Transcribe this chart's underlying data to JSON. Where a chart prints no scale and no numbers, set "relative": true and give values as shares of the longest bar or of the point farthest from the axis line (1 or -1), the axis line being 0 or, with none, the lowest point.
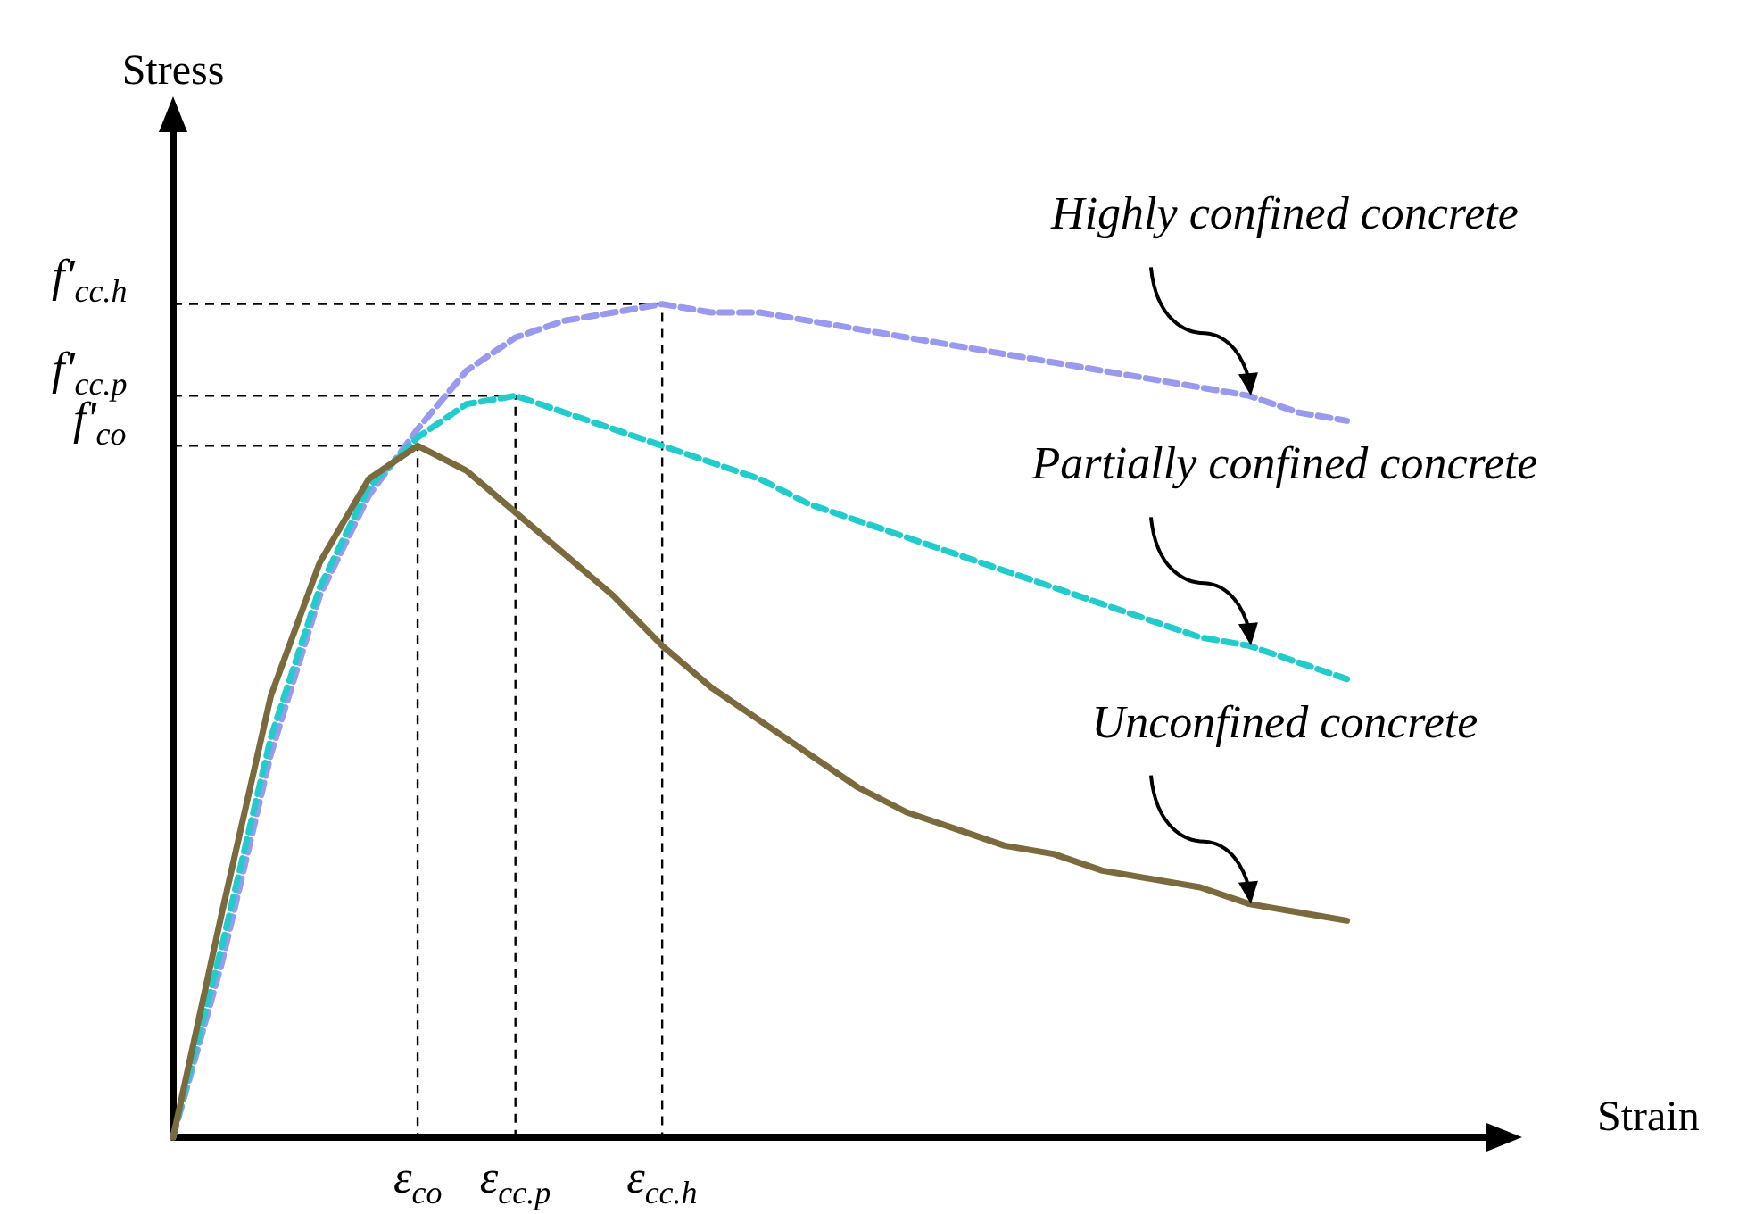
{
  "chart_data": {
    "type": "line",
    "relative": true,
    "xlabel": "Strain",
    "ylabel": "Stress",
    "grid": false,
    "marker": "none",
    "categories": [
      null,
      null,
      null,
      null,
      null,
      null,
      null,
      null,
      null,
      null,
      null,
      null,
      null,
      null,
      null,
      null,
      null,
      null,
      null,
      null,
      null,
      null,
      null,
      null,
      null,
      null,
      null,
      null
    ],
    "ref_lines": [
      {
        "axis": "y",
        "value": 0.83,
        "label": "f'$_{co}$",
        "color": "#000000",
        "line_style": "dashed"
      },
      {
        "axis": "y",
        "value": 0.89,
        "label": "f'$_{cc.p}$",
        "color": "#000000",
        "line_style": "dashed"
      },
      {
        "axis": "y",
        "value": 1,
        "label": "f'$_{cc.h}$",
        "color": "#000000",
        "line_style": "dashed"
      }
    ],
    "annotations": [
      "ε$_{co}$",
      "ε$_{cc.p}$",
      "ε$_{cc.h}$",
      "Highly confined concrete",
      "Partially confined concrete",
      "Unconfined concrete"
    ],
    "series": [
      {
        "color": "#9999ee",
        "line_style": "dashed",
        "values": [
          0,
          0.21,
          0.46,
          0.65,
          0.77,
          0.85,
          0.92,
          0.96,
          0.98,
          0.99,
          1,
          0.99,
          0.99,
          0.98,
          0.97,
          0.96,
          0.95,
          0.94,
          0.93,
          0.92,
          0.91,
          0.9,
          0.89,
          0.87,
          0.86,
          null,
          null,
          null
        ]
      },
      {
        "color": "#22cccc",
        "line_style": "dashed",
        "values": [
          0,
          0.23,
          0.48,
          0.66,
          0.78,
          0.84,
          0.88,
          0.89,
          0.87,
          0.85,
          0.83,
          0.81,
          0.79,
          0.76,
          0.74,
          0.72,
          0.7,
          0.68,
          0.66,
          0.64,
          0.62,
          0.6,
          0.59,
          0.57,
          0.55,
          null,
          null,
          null
        ]
      },
      {
        "color": "#7a6a3e",
        "line_style": "solid",
        "values": [
          0,
          0.27,
          0.53,
          0.69,
          0.79,
          0.83,
          0.8,
          0.75,
          0.7,
          0.65,
          0.59,
          0.54,
          0.5,
          0.46,
          0.42,
          0.39,
          0.37,
          0.35,
          0.34,
          0.32,
          0.31,
          0.3,
          0.28,
          0.27,
          0.26,
          null,
          null,
          null
        ]
      }
    ]
  }
}
